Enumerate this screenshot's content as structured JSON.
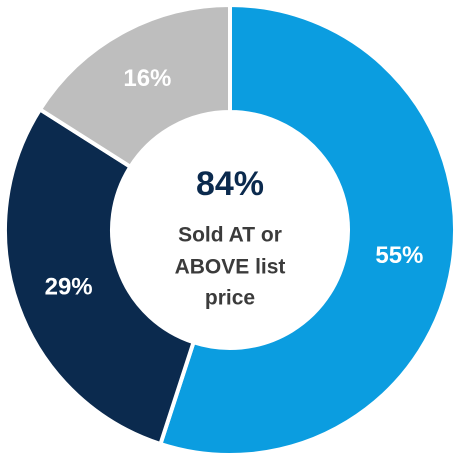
{
  "chart_data": {
    "type": "donut",
    "values": [
      55,
      29,
      16
    ],
    "value_labels": [
      "55%",
      "29%",
      "16%"
    ],
    "colors": [
      "#0b9de0",
      "#0b2a4e",
      "#bebebe"
    ],
    "center_value": "84%",
    "center_lines": [
      "Sold AT or",
      "ABOVE list",
      "price"
    ]
  }
}
